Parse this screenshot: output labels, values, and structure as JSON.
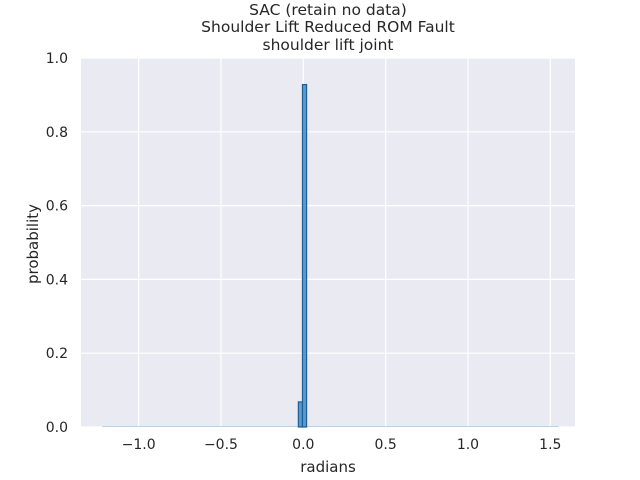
{
  "chart_data": {
    "type": "bar",
    "title": [
      "SAC (retain no data)",
      "Shoulder Lift Reduced ROM Fault",
      "shoulder lift joint"
    ],
    "xlabel": "radians",
    "ylabel": "probability",
    "xlim": [
      -1.35,
      1.65
    ],
    "ylim": [
      0,
      1.0
    ],
    "xticks": [
      -1.0,
      -0.5,
      0.0,
      0.5,
      1.0,
      1.5
    ],
    "xtick_labels": [
      "−1.0",
      "−0.5",
      "0.0",
      "0.5",
      "1.0",
      "1.5"
    ],
    "yticks": [
      0.0,
      0.2,
      0.4,
      0.6,
      0.8,
      1.0
    ],
    "ytick_labels": [
      "0.0",
      "0.2",
      "0.4",
      "0.6",
      "0.8",
      "1.0"
    ],
    "grid": true,
    "bins": [
      {
        "x0": -0.03,
        "x1": -0.005,
        "value": 0.068
      },
      {
        "x0": -0.005,
        "x1": 0.02,
        "value": 0.928
      }
    ],
    "baseline_span": [
      -1.22,
      1.55
    ],
    "colors": {
      "background": "#eaeaf2",
      "grid": "#ffffff",
      "bar_fill": "#4a90c8",
      "bar_edge": "#1f5f96"
    }
  }
}
